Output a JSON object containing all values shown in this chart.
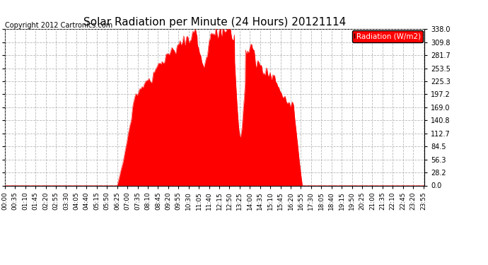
{
  "title": "Solar Radiation per Minute (24 Hours) 20121114",
  "copyright_text": "Copyright 2012 Cartronics.com",
  "legend_label": "Radiation (W/m2)",
  "background_color": "#ffffff",
  "plot_bg_color": "#ffffff",
  "fill_color": "#ff0000",
  "line_color": "#ff0000",
  "dashed_line_color": "#ff0000",
  "grid_color": "#b0b0b0",
  "ylim": [
    0.0,
    338.0
  ],
  "yticks": [
    0.0,
    28.2,
    56.3,
    84.5,
    112.7,
    140.8,
    169.0,
    197.2,
    225.3,
    253.5,
    281.7,
    309.8,
    338.0
  ],
  "num_minutes": 1440,
  "x_tick_step": 35,
  "x_tick_labels": [
    "00:00",
    "00:35",
    "01:10",
    "01:45",
    "02:20",
    "02:55",
    "03:30",
    "04:05",
    "04:40",
    "05:15",
    "05:50",
    "06:25",
    "07:00",
    "07:35",
    "08:10",
    "08:45",
    "09:20",
    "09:55",
    "10:30",
    "11:05",
    "11:40",
    "12:15",
    "12:50",
    "13:25",
    "14:00",
    "14:35",
    "15:10",
    "15:45",
    "16:20",
    "16:55",
    "17:30",
    "18:05",
    "18:40",
    "19:15",
    "19:50",
    "20:25",
    "21:00",
    "21:35",
    "22:10",
    "22:45",
    "23:20",
    "23:55"
  ]
}
